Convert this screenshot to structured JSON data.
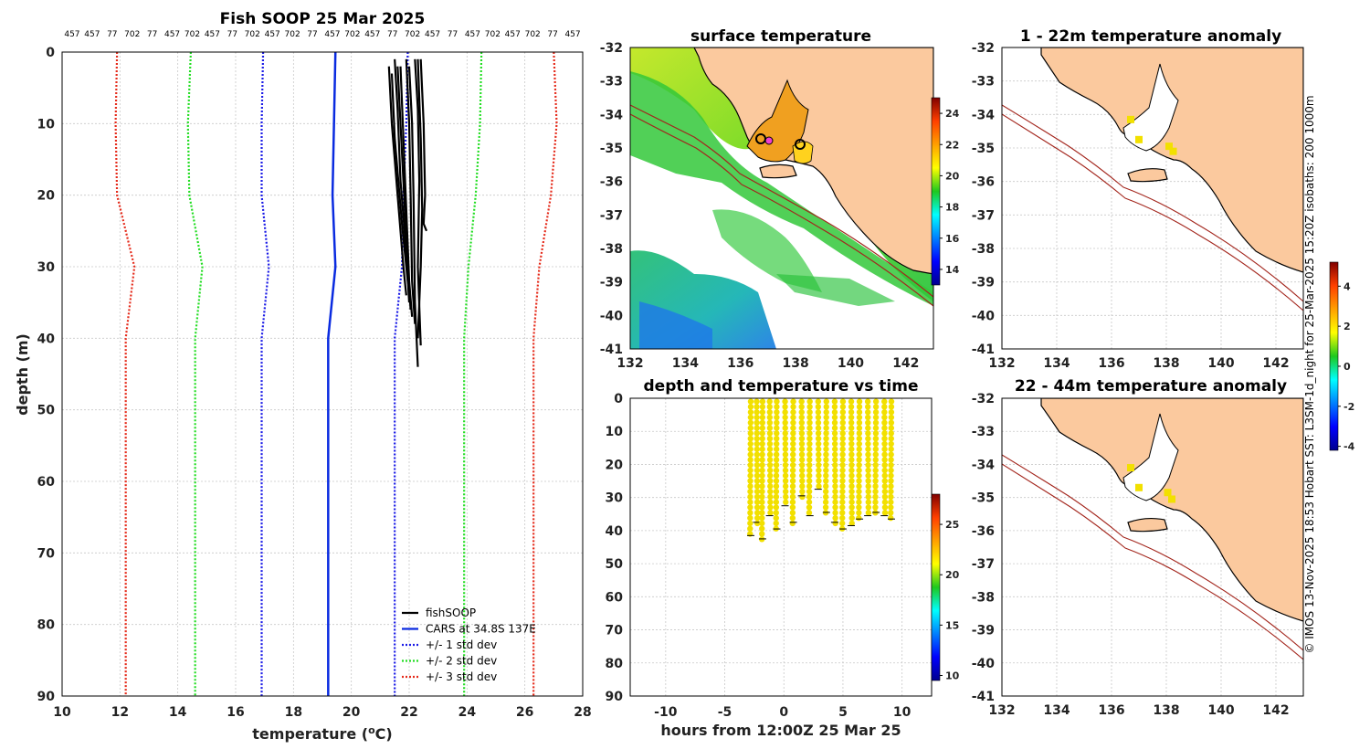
{
  "footer": "© IMOS 13-Nov-2025 18:53 Hobart SST: L3SM-1d_night for 25-Mar-2025 15:20Z isobaths: 200  1000m",
  "colors": {
    "fishsoop": "#000000",
    "cars": "#0a2be0",
    "std1": "#1a1ae6",
    "std2": "#22dd22",
    "std3": "#e52a1a",
    "land": "#fbc99e",
    "isobath": "#a3261d",
    "marker": "#f2e000"
  },
  "chart_data": [
    {
      "name": "profile",
      "type": "line",
      "title": "Fish SOOP 25 Mar 2025",
      "xlabel": "temperature (°C)",
      "xlabel_text": "temperature (",
      "xlabel_sup": "o",
      "xlabel_unit": "C)",
      "ylabel": "depth (m)",
      "xlim": [
        10,
        28
      ],
      "ylim": [
        0,
        90
      ],
      "xticks": [
        10,
        12,
        14,
        16,
        18,
        20,
        22,
        24,
        26,
        28
      ],
      "yticks": [
        0,
        10,
        20,
        30,
        40,
        50,
        60,
        70,
        80,
        90
      ],
      "top_tick_labels": [
        "457",
        "457",
        "77",
        "702",
        "77",
        "457",
        "702",
        "457",
        "77",
        "702",
        "457",
        "702",
        "77",
        "457",
        "702",
        "457",
        "77",
        "702",
        "457",
        "77",
        "457",
        "702",
        "457",
        "702",
        "77",
        "457"
      ],
      "depth": [
        0,
        10,
        20,
        30,
        40,
        50,
        60,
        70,
        80,
        90
      ],
      "series": [
        {
          "name": "CARS at 34.8S 137E",
          "key": "cars",
          "style": "solid",
          "values": [
            19.45,
            19.4,
            19.35,
            19.45,
            19.2,
            19.2,
            19.2,
            19.2,
            19.2,
            19.2
          ]
        },
        {
          "name": "+/- 1 std dev",
          "key": "std1",
          "style": "dotted",
          "values": [
            16.95,
            16.9,
            16.9,
            17.15,
            16.9,
            16.9,
            16.9,
            16.9,
            16.9,
            16.9
          ]
        },
        {
          "name": "+/- 1 std dev",
          "key": "std1",
          "style": "dotted",
          "hide_legend": true,
          "values": [
            21.95,
            21.9,
            21.8,
            21.75,
            21.5,
            21.5,
            21.5,
            21.5,
            21.5,
            21.5
          ]
        },
        {
          "name": "+/- 2 std dev",
          "key": "std2",
          "style": "dotted",
          "values": [
            14.45,
            14.35,
            14.4,
            14.85,
            14.6,
            14.6,
            14.6,
            14.6,
            14.6,
            14.6
          ]
        },
        {
          "name": "+/- 2 std dev",
          "key": "std2",
          "style": "dotted",
          "hide_legend": true,
          "values": [
            24.5,
            24.45,
            24.3,
            24.05,
            23.9,
            23.9,
            23.9,
            23.9,
            23.9,
            23.9
          ]
        },
        {
          "name": "+/- 3 std dev",
          "key": "std3",
          "style": "dotted",
          "values": [
            11.9,
            11.85,
            11.9,
            12.5,
            12.2,
            12.2,
            12.2,
            12.2,
            12.2,
            12.2
          ]
        },
        {
          "name": "+/- 3 std dev",
          "key": "std3",
          "style": "dotted",
          "hide_legend": true,
          "values": [
            27.0,
            27.1,
            26.9,
            26.5,
            26.3,
            26.3,
            26.3,
            26.3,
            26.3,
            26.3
          ]
        }
      ],
      "fishsoop_casts": [
        {
          "temp": [
            21.3,
            21.4,
            21.6,
            21.8,
            21.9
          ],
          "depth": [
            2,
            10,
            20,
            30,
            34
          ]
        },
        {
          "temp": [
            21.5,
            21.6,
            21.7,
            21.9,
            22.0
          ],
          "depth": [
            1,
            8,
            18,
            28,
            35
          ]
        },
        {
          "temp": [
            21.7,
            21.8,
            21.9,
            22.0,
            22.1
          ],
          "depth": [
            2,
            12,
            22,
            32,
            37
          ]
        },
        {
          "temp": [
            21.9,
            22.0,
            22.05,
            22.1,
            22.2
          ],
          "depth": [
            1,
            10,
            20,
            32,
            38
          ]
        },
        {
          "temp": [
            22.0,
            22.1,
            22.15,
            22.2,
            22.3
          ],
          "depth": [
            2,
            10,
            20,
            35,
            44
          ]
        },
        {
          "temp": [
            22.2,
            22.3,
            22.35,
            22.3,
            22.4
          ],
          "depth": [
            1,
            8,
            18,
            30,
            41
          ]
        },
        {
          "temp": [
            22.4,
            22.5,
            22.55,
            22.5,
            22.6
          ],
          "depth": [
            1,
            10,
            20,
            24,
            25
          ]
        },
        {
          "temp": [
            21.4,
            21.5,
            21.75,
            21.95,
            22.0
          ],
          "depth": [
            3,
            12,
            24,
            32,
            33
          ]
        },
        {
          "temp": [
            22.3,
            22.4,
            22.45,
            22.4,
            22.3
          ],
          "depth": [
            1,
            12,
            22,
            30,
            40
          ]
        },
        {
          "temp": [
            21.6,
            21.7,
            21.85,
            21.95,
            22.05
          ],
          "depth": [
            2,
            10,
            22,
            30,
            36
          ]
        }
      ],
      "legend": [
        "fishSOOP",
        "CARS at 34.8S 137E",
        "+/- 1 std dev",
        "+/- 2 std dev",
        "+/- 3 std dev"
      ]
    },
    {
      "name": "surface",
      "type": "heatmap",
      "title": "surface temperature",
      "xlim": [
        132,
        143
      ],
      "ylim": [
        -41,
        -32
      ],
      "xticks": [
        132,
        134,
        136,
        138,
        140,
        142
      ],
      "yticks": [
        -32,
        -33,
        -34,
        -35,
        -36,
        -37,
        -38,
        -39,
        -40,
        -41
      ],
      "colorbar": {
        "min": 13,
        "max": 25,
        "ticks": [
          14,
          16,
          18,
          20,
          22,
          24
        ]
      }
    },
    {
      "name": "timeplot",
      "type": "scatter",
      "title": "depth and temperature vs time",
      "xlabel": "hours from 12:00Z 25 Mar 25",
      "xlim": [
        -13,
        12.5
      ],
      "ylim": [
        0,
        90
      ],
      "xticks": [
        -10,
        -5,
        0,
        5,
        10
      ],
      "yticks": [
        0,
        10,
        20,
        30,
        40,
        50,
        60,
        70,
        80,
        90
      ],
      "colorbar": {
        "min": 9.5,
        "max": 28,
        "ticks": [
          10,
          15,
          20,
          25
        ]
      },
      "cast_times": [
        -2.8,
        -2.3,
        -1.8,
        -1.2,
        -0.6,
        0.1,
        0.8,
        1.5,
        2.2,
        2.9,
        3.6,
        4.3,
        5.0,
        5.7,
        6.4,
        7.1,
        7.8,
        8.5,
        9.1
      ],
      "cast_max_depth": [
        42,
        38,
        43,
        36,
        40,
        33,
        38,
        30,
        36,
        28,
        35,
        38,
        40,
        39,
        37,
        36,
        35,
        36,
        37
      ],
      "cast_temp": 22.2
    },
    {
      "name": "anom1",
      "type": "heatmap",
      "title": "1 - 22m temperature anomaly",
      "xlim": [
        132,
        143
      ],
      "ylim": [
        -41,
        -32
      ],
      "xticks": [
        132,
        134,
        136,
        138,
        140,
        142
      ],
      "yticks": [
        -32,
        -33,
        -34,
        -35,
        -36,
        -37,
        -38,
        -39,
        -40,
        -41
      ],
      "points": [
        [
          136.7,
          -34.15
        ],
        [
          137.0,
          -34.75
        ],
        [
          138.1,
          -34.95
        ],
        [
          138.25,
          -35.1
        ]
      ]
    },
    {
      "name": "anom2",
      "type": "heatmap",
      "title": "22 - 44m temperature anomaly",
      "xlim": [
        132,
        143
      ],
      "ylim": [
        -41,
        -32
      ],
      "xticks": [
        132,
        134,
        136,
        138,
        140,
        142
      ],
      "yticks": [
        -32,
        -33,
        -34,
        -35,
        -36,
        -37,
        -38,
        -39,
        -40,
        -41
      ],
      "points": [
        [
          136.7,
          -34.1
        ],
        [
          137.0,
          -34.7
        ],
        [
          138.05,
          -34.85
        ],
        [
          138.2,
          -35.05
        ]
      ],
      "colorbar": {
        "min": -4.2,
        "max": 5.2,
        "ticks": [
          4,
          2,
          0,
          -2,
          -4
        ]
      }
    }
  ]
}
